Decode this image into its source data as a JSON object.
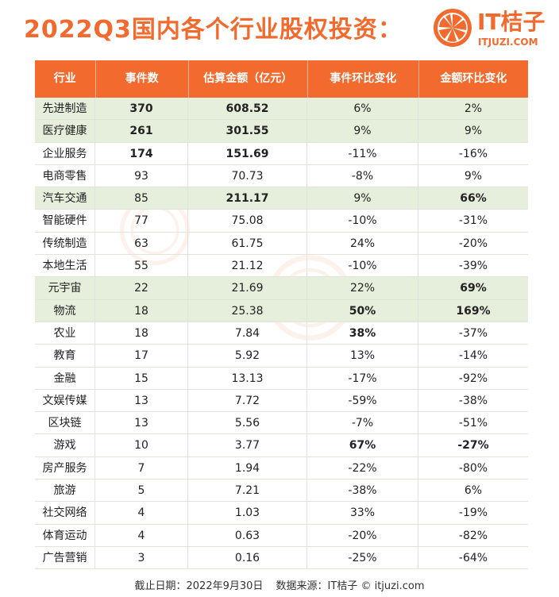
{
  "title": "2022Q3国内各个行业股权投资：",
  "logo": {
    "text": "IT桔子",
    "sub": "ITJUZI.COM",
    "brand_color": "#f26a2e"
  },
  "table": {
    "headers": [
      "行业",
      "事件数",
      "估算金额（亿元）",
      "事件环比变化",
      "金额环比变化"
    ],
    "rows": [
      {
        "industry": "先进制造",
        "events": "370",
        "amount": "608.52",
        "ev_change": "6%",
        "amt_change": "2%",
        "highlight": true,
        "bold": [
          1,
          2
        ]
      },
      {
        "industry": "医疗健康",
        "events": "261",
        "amount": "301.55",
        "ev_change": "9%",
        "amt_change": "9%",
        "highlight": true,
        "bold": [
          1,
          2
        ]
      },
      {
        "industry": "企业服务",
        "events": "174",
        "amount": "151.69",
        "ev_change": "-11%",
        "amt_change": "-16%",
        "highlight": false,
        "bold": [
          1,
          2
        ]
      },
      {
        "industry": "电商零售",
        "events": "93",
        "amount": "70.73",
        "ev_change": "-8%",
        "amt_change": "9%",
        "highlight": false,
        "bold": []
      },
      {
        "industry": "汽车交通",
        "events": "85",
        "amount": "211.17",
        "ev_change": "9%",
        "amt_change": "66%",
        "highlight": true,
        "bold": [
          2,
          4
        ]
      },
      {
        "industry": "智能硬件",
        "events": "77",
        "amount": "75.08",
        "ev_change": "-10%",
        "amt_change": "-31%",
        "highlight": false,
        "bold": []
      },
      {
        "industry": "传统制造",
        "events": "63",
        "amount": "61.75",
        "ev_change": "24%",
        "amt_change": "-20%",
        "highlight": false,
        "bold": []
      },
      {
        "industry": "本地生活",
        "events": "55",
        "amount": "21.12",
        "ev_change": "-10%",
        "amt_change": "-39%",
        "highlight": false,
        "bold": []
      },
      {
        "industry": "元宇宙",
        "events": "22",
        "amount": "21.69",
        "ev_change": "22%",
        "amt_change": "69%",
        "highlight": true,
        "bold": [
          4
        ]
      },
      {
        "industry": "物流",
        "events": "18",
        "amount": "25.38",
        "ev_change": "50%",
        "amt_change": "169%",
        "highlight": true,
        "bold": [
          3,
          4
        ]
      },
      {
        "industry": "农业",
        "events": "18",
        "amount": "7.84",
        "ev_change": "38%",
        "amt_change": "-37%",
        "highlight": false,
        "bold": [
          3
        ]
      },
      {
        "industry": "教育",
        "events": "17",
        "amount": "5.92",
        "ev_change": "13%",
        "amt_change": "-14%",
        "highlight": false,
        "bold": []
      },
      {
        "industry": "金融",
        "events": "15",
        "amount": "13.13",
        "ev_change": "-17%",
        "amt_change": "-92%",
        "highlight": false,
        "bold": []
      },
      {
        "industry": "文娱传媒",
        "events": "13",
        "amount": "7.72",
        "ev_change": "-59%",
        "amt_change": "-38%",
        "highlight": false,
        "bold": []
      },
      {
        "industry": "区块链",
        "events": "13",
        "amount": "5.56",
        "ev_change": "-7%",
        "amt_change": "-51%",
        "highlight": false,
        "bold": []
      },
      {
        "industry": "游戏",
        "events": "10",
        "amount": "3.77",
        "ev_change": "67%",
        "amt_change": "-27%",
        "highlight": false,
        "bold": [
          3,
          4
        ]
      },
      {
        "industry": "房产服务",
        "events": "7",
        "amount": "1.94",
        "ev_change": "-22%",
        "amt_change": "-80%",
        "highlight": false,
        "bold": []
      },
      {
        "industry": "旅游",
        "events": "5",
        "amount": "7.21",
        "ev_change": "-38%",
        "amt_change": "6%",
        "highlight": false,
        "bold": []
      },
      {
        "industry": "社交网络",
        "events": "4",
        "amount": "1.03",
        "ev_change": "33%",
        "amt_change": "-19%",
        "highlight": false,
        "bold": []
      },
      {
        "industry": "体育运动",
        "events": "4",
        "amount": "0.63",
        "ev_change": "-20%",
        "amt_change": "-82%",
        "highlight": false,
        "bold": []
      },
      {
        "industry": "广告营销",
        "events": "3",
        "amount": "0.16",
        "ev_change": "-25%",
        "amt_change": "-64%",
        "highlight": false,
        "bold": []
      }
    ]
  },
  "footer": {
    "date_label": "截止日期：2022年9月30日",
    "source_label": "数据来源：IT桔子 © itjuzi.com"
  },
  "colors": {
    "accent": "#f26a2e",
    "highlight_row": "#e6efdc",
    "header_text": "#ffffff"
  }
}
